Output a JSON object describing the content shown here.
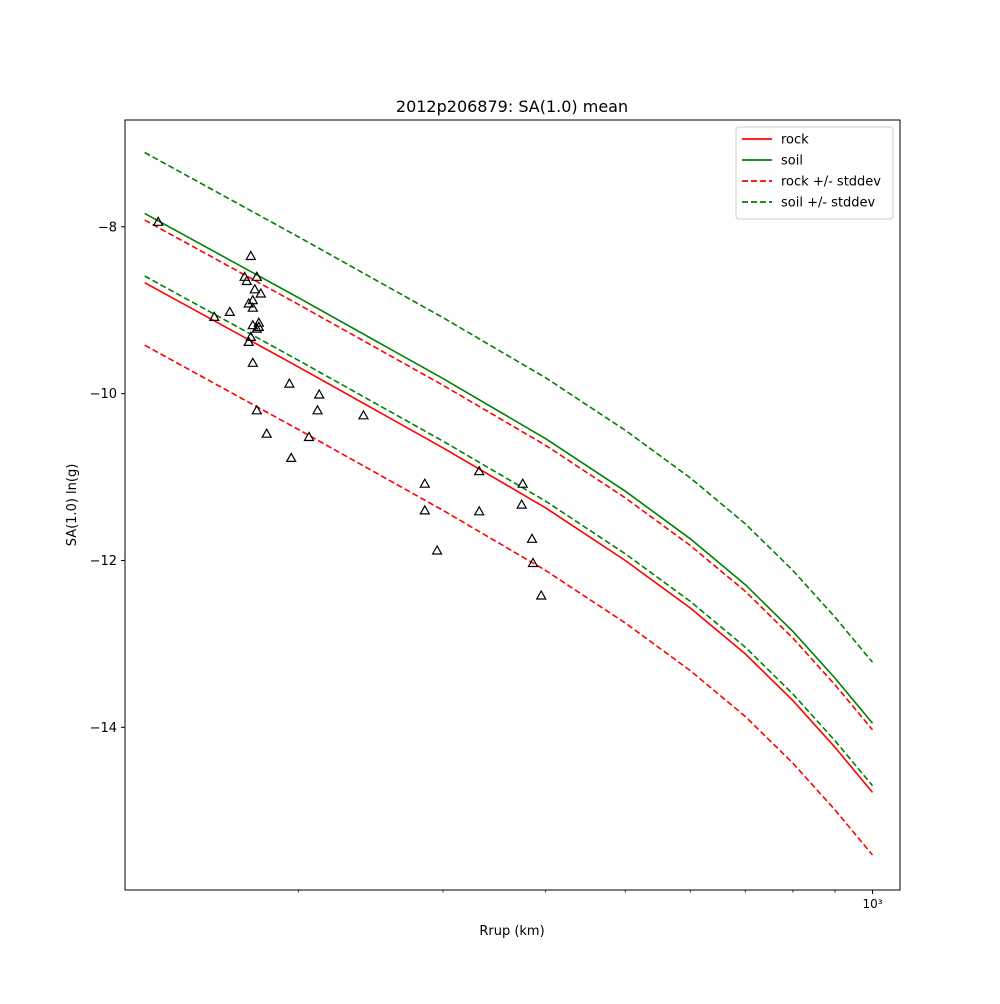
{
  "chart_data": {
    "type": "scatter",
    "title": "2012p206879: SA(1.0) mean",
    "xlabel": "Rrup (km)",
    "ylabel": "SA(1.0) ln(g)",
    "x_scale": "log",
    "xlim": [
      123,
      1080
    ],
    "ylim": [
      -15.95,
      -6.72
    ],
    "y_ticks": [
      -8,
      -10,
      -12,
      -14
    ],
    "y_tick_labels": [
      "−8",
      "−10",
      "−12",
      "−14"
    ],
    "x_ticks": [
      1000
    ],
    "x_tick_labels": [
      "10³"
    ],
    "legend_position": "upper right",
    "grid": false,
    "series": [
      {
        "name": "rock",
        "kind": "line",
        "color": "#ff0000",
        "dash": "solid",
        "x": [
          130,
          200,
          300,
          400,
          500,
          600,
          700,
          800,
          900,
          1000
        ],
        "y": [
          -8.67,
          -9.68,
          -10.65,
          -11.37,
          -12.0,
          -12.57,
          -13.12,
          -13.68,
          -14.24,
          -14.78
        ]
      },
      {
        "name": "soil",
        "kind": "line",
        "color": "#008000",
        "dash": "solid",
        "x": [
          130,
          200,
          300,
          400,
          500,
          600,
          700,
          800,
          900,
          1000
        ],
        "y": [
          -7.84,
          -8.85,
          -9.82,
          -10.54,
          -11.17,
          -11.74,
          -12.29,
          -12.85,
          -13.41,
          -13.95
        ]
      },
      {
        "name": "rock +/- stddev",
        "kind": "line",
        "color": "#ff0000",
        "dash": "dashed",
        "x": [
          130,
          200,
          300,
          400,
          500,
          600,
          700,
          800,
          900,
          1000
        ],
        "y": [
          -7.92,
          -8.93,
          -9.9,
          -10.62,
          -11.25,
          -11.82,
          -12.37,
          -12.93,
          -13.49,
          -14.03
        ]
      },
      {
        "name": "",
        "kind": "line",
        "color": "#ff0000",
        "dash": "dashed",
        "x": [
          130,
          200,
          300,
          400,
          500,
          600,
          700,
          800,
          900,
          1000
        ],
        "y": [
          -9.42,
          -10.43,
          -11.4,
          -12.12,
          -12.75,
          -13.32,
          -13.87,
          -14.43,
          -14.99,
          -15.53
        ]
      },
      {
        "name": "soil +/- stddev",
        "kind": "line",
        "color": "#008000",
        "dash": "dashed",
        "x": [
          130,
          200,
          300,
          400,
          500,
          600,
          700,
          800,
          900,
          1000
        ],
        "y": [
          -7.11,
          -8.12,
          -9.09,
          -9.81,
          -10.44,
          -11.01,
          -11.56,
          -12.12,
          -12.68,
          -13.22
        ]
      },
      {
        "name": "",
        "kind": "line",
        "color": "#008000",
        "dash": "dashed",
        "x": [
          130,
          200,
          300,
          400,
          500,
          600,
          700,
          800,
          900,
          1000
        ],
        "y": [
          -8.59,
          -9.6,
          -10.57,
          -11.29,
          -11.92,
          -12.49,
          -13.04,
          -13.6,
          -14.16,
          -14.7
        ]
      }
    ],
    "observations": {
      "marker": "triangle",
      "color": "#000000",
      "points": [
        [
          135,
          -7.94
        ],
        [
          175,
          -8.35
        ],
        [
          172,
          -8.6
        ],
        [
          173,
          -8.65
        ],
        [
          178,
          -8.6
        ],
        [
          177,
          -8.75
        ],
        [
          180,
          -8.8
        ],
        [
          176,
          -8.88
        ],
        [
          174,
          -8.92
        ],
        [
          176,
          -8.97
        ],
        [
          179,
          -9.15
        ],
        [
          179,
          -9.2
        ],
        [
          176,
          -9.18
        ],
        [
          178,
          -9.22
        ],
        [
          175,
          -9.32
        ],
        [
          174,
          -9.38
        ],
        [
          176,
          -9.63
        ],
        [
          165,
          -9.02
        ],
        [
          158,
          -9.08
        ],
        [
          178,
          -10.2
        ],
        [
          183,
          -10.48
        ],
        [
          195,
          -9.88
        ],
        [
          196,
          -10.77
        ],
        [
          206,
          -10.52
        ],
        [
          212,
          -10.01
        ],
        [
          211,
          -10.2
        ],
        [
          240,
          -10.26
        ],
        [
          285,
          -11.08
        ],
        [
          285,
          -11.4
        ],
        [
          295,
          -11.88
        ],
        [
          332,
          -10.93
        ],
        [
          332,
          -11.41
        ],
        [
          375,
          -11.08
        ],
        [
          374,
          -11.33
        ],
        [
          385,
          -11.74
        ],
        [
          386,
          -12.03
        ],
        [
          395,
          -12.42
        ]
      ]
    }
  }
}
